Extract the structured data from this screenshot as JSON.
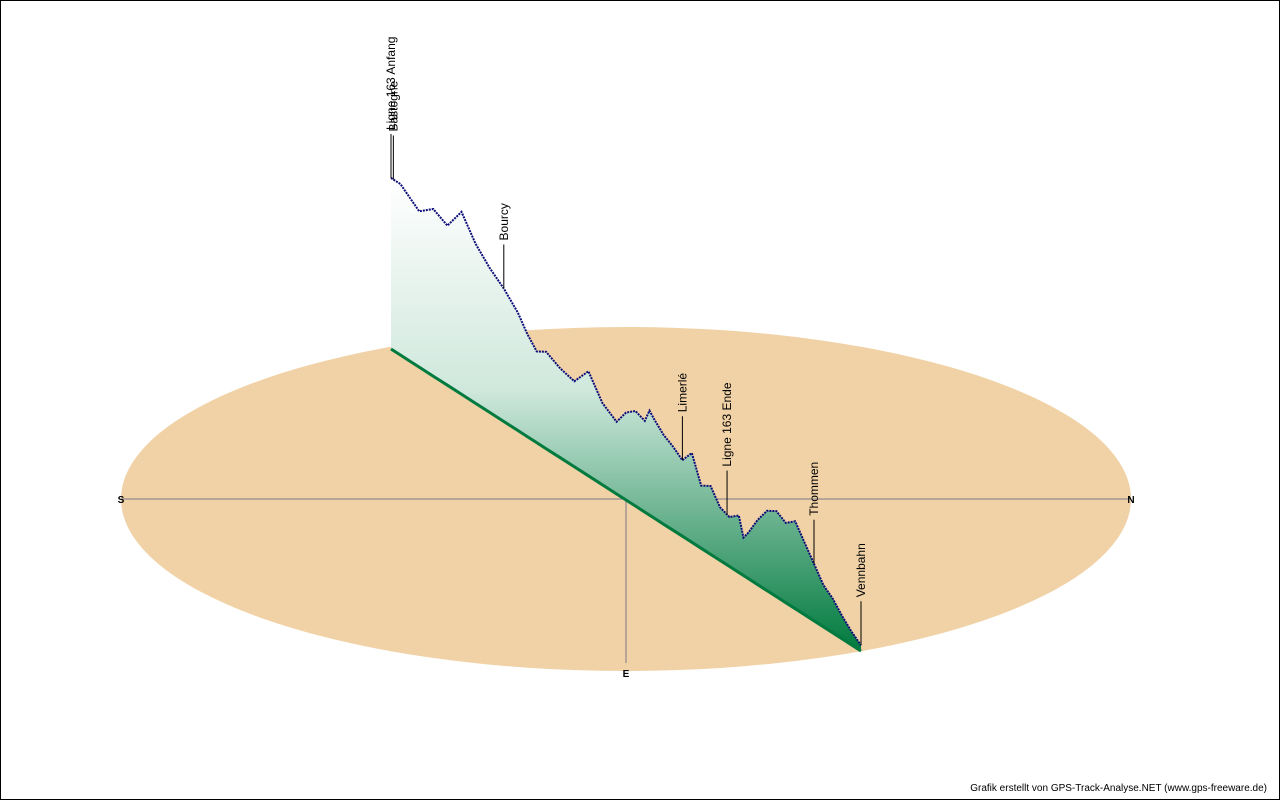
{
  "chart_data": {
    "type": "area",
    "subtype": "3d-elevation-profile-on-compass-disc",
    "compass": {
      "south": "S",
      "north": "N",
      "east": "E"
    },
    "colors": {
      "disc": "#f0d2a6",
      "track": "#0c0c78",
      "fill_top": "#ffffff",
      "fill_bottom": "#007a3e",
      "axes": "#7a7a8a"
    },
    "x": [
      0,
      0.02,
      0.04,
      0.06,
      0.09,
      0.12,
      0.15,
      0.18,
      0.21,
      0.24,
      0.27,
      0.29,
      0.31,
      0.33,
      0.36,
      0.39,
      0.42,
      0.45,
      0.48,
      0.5,
      0.52,
      0.54,
      0.55,
      0.56,
      0.58,
      0.6,
      0.62,
      0.64,
      0.66,
      0.68,
      0.7,
      0.72,
      0.74,
      0.75,
      0.76,
      0.78,
      0.8,
      0.82,
      0.84,
      0.86,
      0.88,
      0.9,
      0.92,
      0.94,
      0.96,
      0.98,
      1
    ],
    "elevation": [
      0.9,
      0.9,
      0.86,
      0.82,
      0.88,
      0.84,
      0.96,
      0.84,
      0.76,
      0.7,
      0.62,
      0.54,
      0.48,
      0.51,
      0.47,
      0.45,
      0.55,
      0.43,
      0.38,
      0.46,
      0.5,
      0.48,
      0.55,
      0.52,
      0.47,
      0.44,
      0.4,
      0.47,
      0.33,
      0.36,
      0.28,
      0.26,
      0.3,
      0.2,
      0.24,
      0.34,
      0.42,
      0.45,
      0.42,
      0.46,
      0.38,
      0.3,
      0.22,
      0.18,
      0.12,
      0.07,
      0.03
    ],
    "waypoints": [
      {
        "name": "Ligne 163 Anfang",
        "x": 0
      },
      {
        "name": "Bastogne",
        "x": 0.005
      },
      {
        "name": "Bourcy",
        "x": 0.24
      },
      {
        "name": "Limerlé",
        "x": 0.62
      },
      {
        "name": "Ligne 163 Ende",
        "x": 0.715
      },
      {
        "name": "Thommen",
        "x": 0.9
      },
      {
        "name": "Vennbahn",
        "x": 1
      }
    ]
  },
  "footer": {
    "credit": "Grafik erstellt von GPS-Track-Analyse.NET (www.gps-freeware.de)"
  }
}
